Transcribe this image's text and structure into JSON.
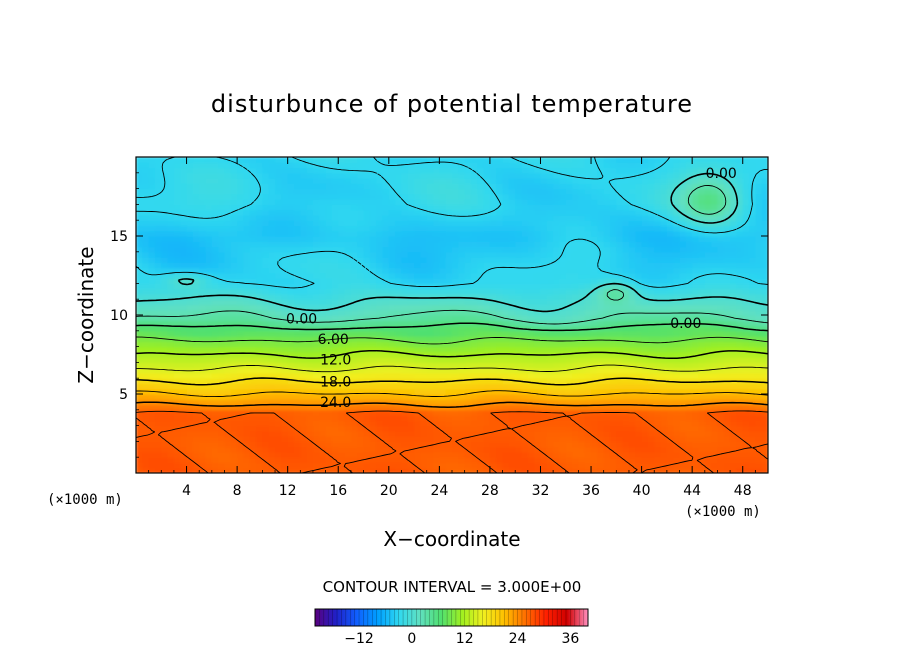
{
  "chart_data": {
    "type": "heatmap",
    "title": "disturbunce of potential temperature",
    "xlabel": "X−coordinate",
    "ylabel": "Z−coordinate",
    "x_unit": "(×1000 m)",
    "y_unit": "(×1000 m)",
    "xlim": [
      0,
      50
    ],
    "ylim": [
      0,
      20
    ],
    "x_ticks": [
      4,
      8,
      12,
      16,
      20,
      24,
      28,
      32,
      36,
      40,
      44,
      48
    ],
    "y_ticks": [
      5,
      10,
      15
    ],
    "contour_interval_text": "CONTOUR INTERVAL = 3.000E+00",
    "contour_interval": 3,
    "contour_labels": [
      {
        "text": "0.00",
        "x": 46.3,
        "z": 18.8
      },
      {
        "text": "0.00",
        "x": 13.1,
        "z": 9.6
      },
      {
        "text": "0.00",
        "x": 43.5,
        "z": 9.3
      },
      {
        "text": "6.00",
        "x": 15.6,
        "z": 8.3
      },
      {
        "text": "12.0",
        "x": 15.8,
        "z": 7.0
      },
      {
        "text": "18.0",
        "x": 15.8,
        "z": 5.6
      },
      {
        "text": "24.0",
        "x": 15.8,
        "z": 4.3
      }
    ],
    "profile_z": [
      0,
      3.8,
      4.3,
      5.0,
      5.8,
      6.6,
      7.5,
      8.4,
      9.2,
      9.8,
      12,
      15,
      17,
      20
    ],
    "profile_value": [
      27,
      27,
      24,
      21,
      18,
      15,
      12,
      9,
      6,
      3,
      -3,
      -4.5,
      -3,
      -3
    ],
    "warm_anomaly": {
      "x": 45.5,
      "z": 17.3,
      "value": 3
    },
    "colorbar": {
      "range": [
        -22,
        40
      ],
      "ticks": [
        -12,
        0,
        12,
        24,
        36
      ]
    },
    "colormap": [
      "#5a007f",
      "#2020c8",
      "#1060ff",
      "#00a0ff",
      "#30d8f0",
      "#60e0c0",
      "#50e070",
      "#a0f020",
      "#f0f020",
      "#ffc000",
      "#ff7000",
      "#ff2000",
      "#d00000",
      "#ff90c0"
    ]
  }
}
